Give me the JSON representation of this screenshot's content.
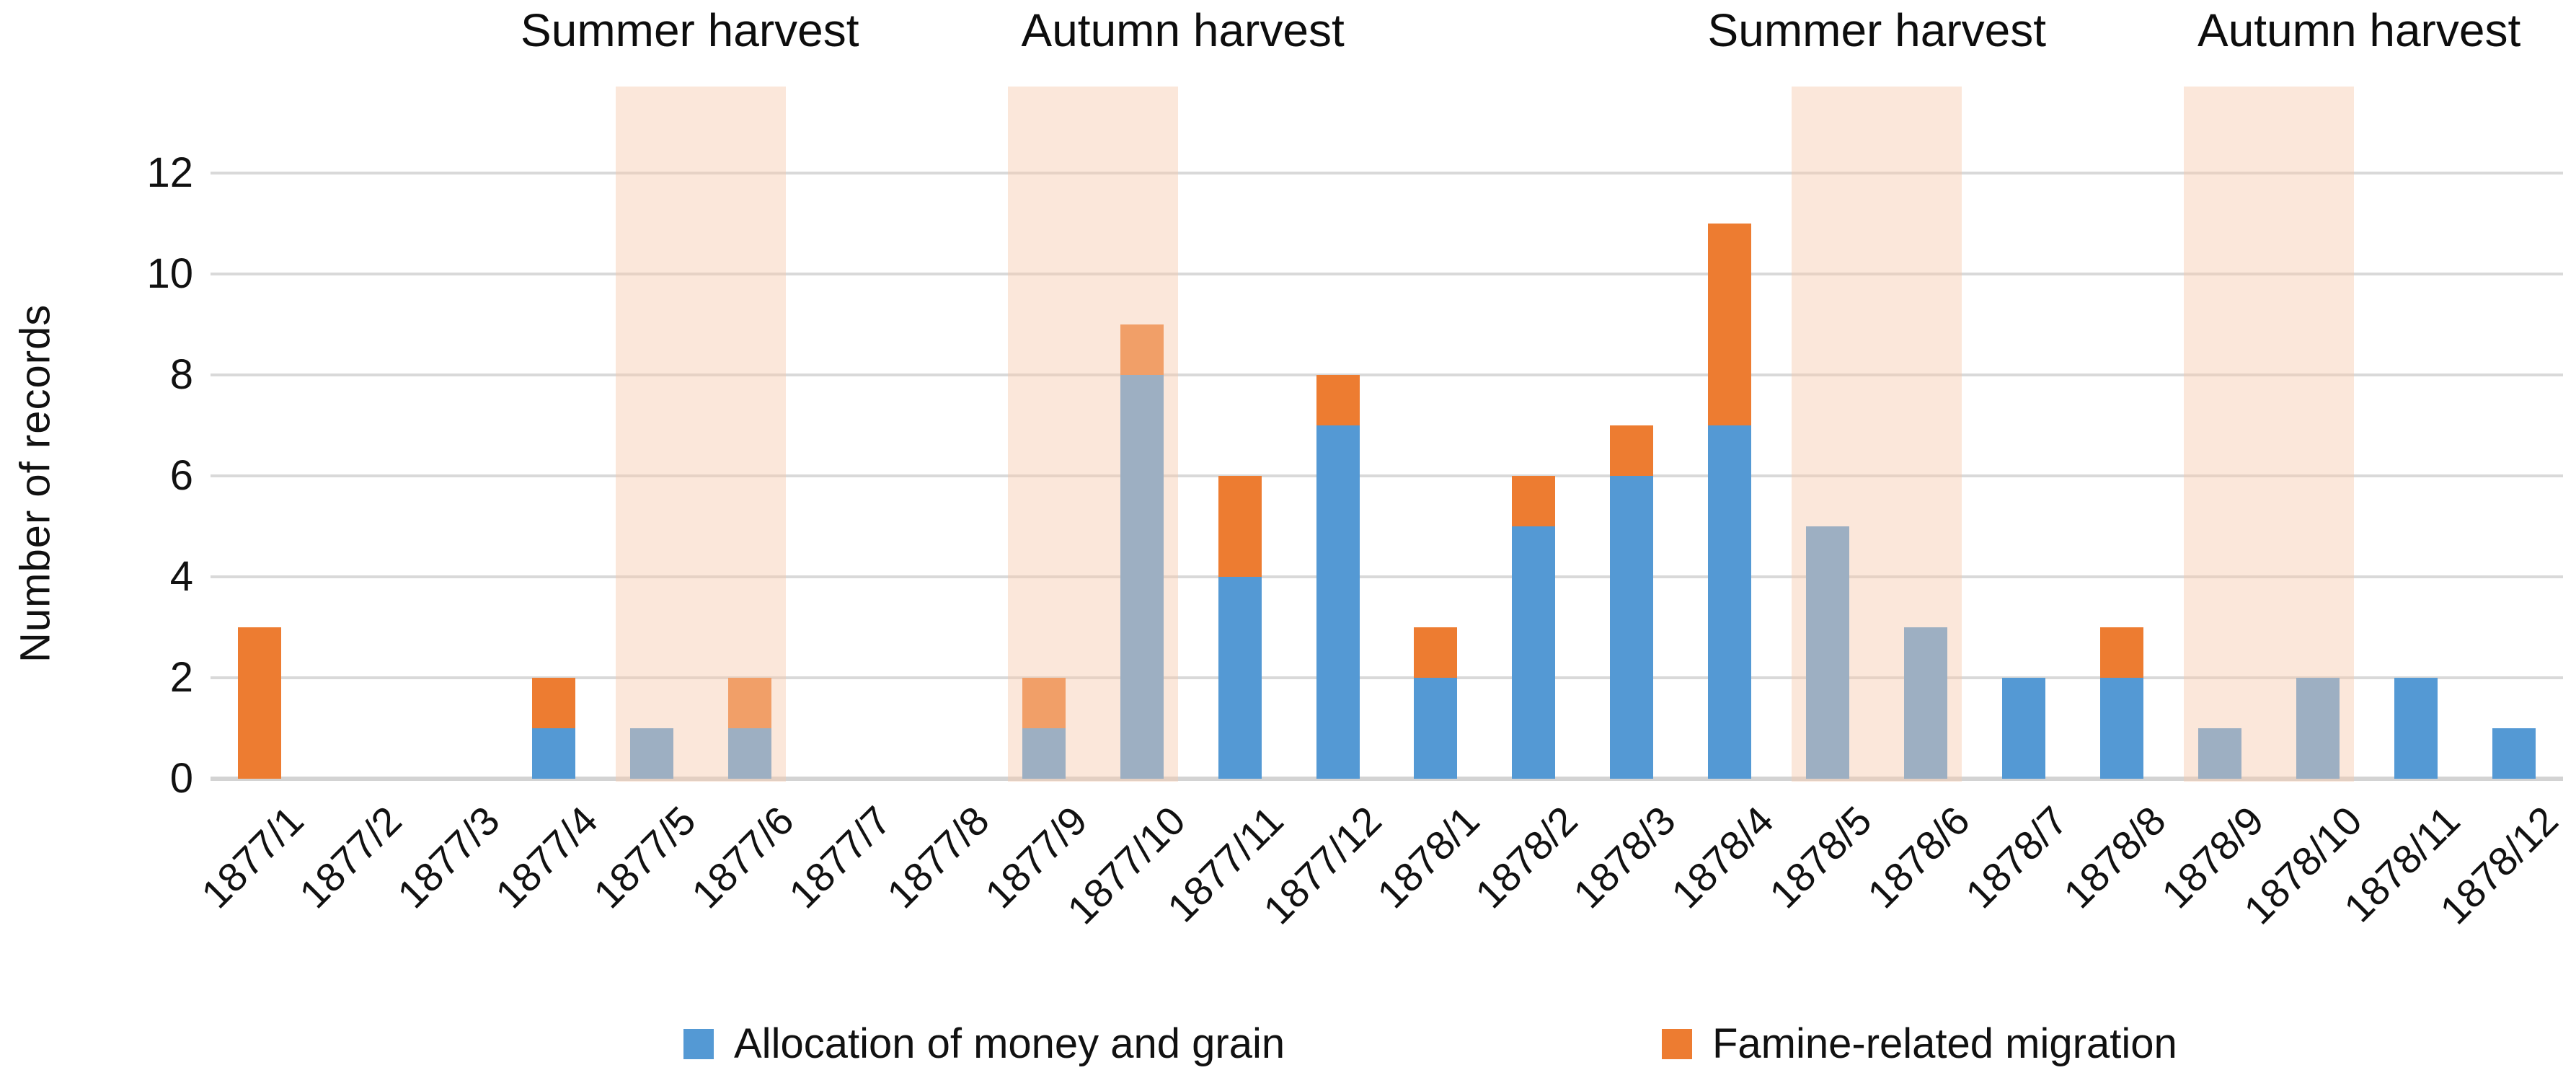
{
  "chart_data": {
    "type": "bar",
    "stacked": true,
    "title": "",
    "ylabel": "Number of records",
    "xlabel": "",
    "ylim": [
      0,
      13.7
    ],
    "yticks": [
      0,
      2,
      4,
      6,
      8,
      10,
      12
    ],
    "grid": "horizontal",
    "legend_position": "bottom",
    "categories": [
      "1877/1",
      "1877/2",
      "1877/3",
      "1877/4",
      "1877/5",
      "1877/6",
      "1877/7",
      "1877/8",
      "1877/9",
      "1877/10",
      "1877/11",
      "1877/12",
      "1878/1",
      "1878/2",
      "1878/3",
      "1878/4",
      "1878/5",
      "1878/6",
      "1878/7",
      "1878/8",
      "1878/9",
      "1878/10",
      "1878/11",
      "1878/12"
    ],
    "series": [
      {
        "name": "Allocation of money and grain",
        "color": "#5499D4",
        "values": [
          0,
          0,
          0,
          1,
          1,
          1,
          0,
          0,
          1,
          8,
          4,
          7,
          2,
          5,
          6,
          7,
          5,
          3,
          2,
          2,
          1,
          2,
          2,
          1
        ]
      },
      {
        "name": "Famine-related migration",
        "color": "#ED7C31",
        "values": [
          3,
          0,
          0,
          1,
          0,
          1,
          0,
          0,
          1,
          1,
          2,
          1,
          1,
          1,
          1,
          4,
          0,
          0,
          0,
          1,
          0,
          0,
          0,
          0
        ]
      }
    ],
    "harvest_bands": [
      {
        "label": "Summer harvest",
        "months": [
          "1877/5",
          "1877/6"
        ]
      },
      {
        "label": "Autumn harvest",
        "months": [
          "1877/9",
          "1877/10"
        ]
      },
      {
        "label": "Summer harvest",
        "months": [
          "1878/5",
          "1878/6"
        ]
      },
      {
        "label": "Autumn harvest",
        "months": [
          "1878/9",
          "1878/10"
        ]
      }
    ],
    "band_color": "#F7CAAC",
    "band_opacity": 0.45,
    "gridline_color": "#D9D9D9",
    "text_color": "#111111"
  }
}
